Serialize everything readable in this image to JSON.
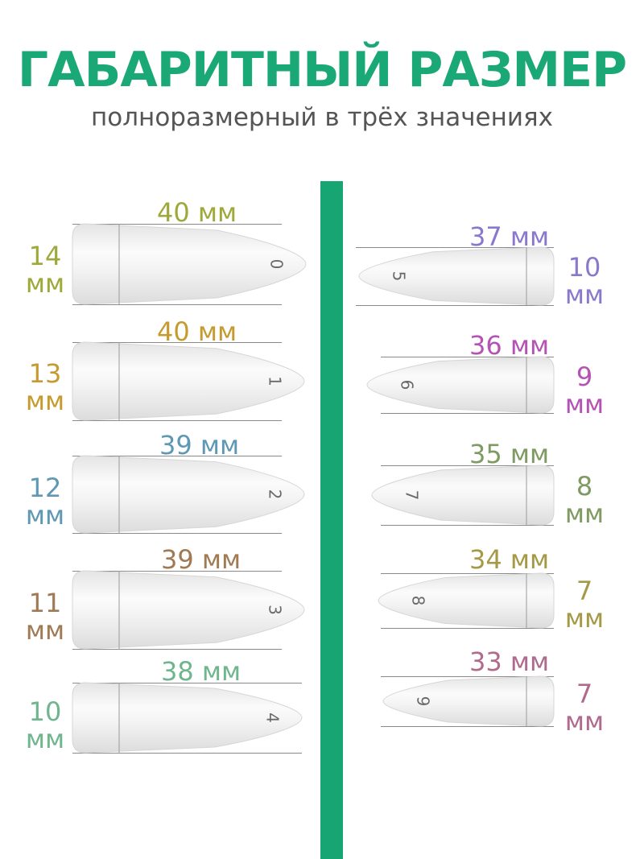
{
  "title": "ГАБАРИТНЫЙ РАЗМЕР",
  "subtitle": "полноразмерный в трёх значениях",
  "left_tips": [
    {
      "number": "0",
      "length": "40 мм",
      "width_value": "14",
      "width_unit": "мм",
      "color": "#9ea93a"
    },
    {
      "number": "1",
      "length": "40 мм",
      "width_value": "13",
      "width_unit": "мм",
      "color": "#c69a2e"
    },
    {
      "number": "2",
      "length": "39 мм",
      "width_value": "12",
      "width_unit": "мм",
      "color": "#5f98b5"
    },
    {
      "number": "3",
      "length": "39 мм",
      "width_value": "11",
      "width_unit": "мм",
      "color": "#a07a55"
    },
    {
      "number": "4",
      "length": "38 мм",
      "width_value": "10",
      "width_unit": "мм",
      "color": "#6fb58e"
    }
  ],
  "right_tips": [
    {
      "number": "5",
      "length": "37 мм",
      "width_value": "10",
      "width_unit": "мм",
      "color": "#8a78cf"
    },
    {
      "number": "6",
      "length": "36 мм",
      "width_value": "9",
      "width_unit": "мм",
      "color": "#b552b5"
    },
    {
      "number": "7",
      "length": "35 мм",
      "width_value": "8",
      "width_unit": "мм",
      "color": "#7f9a62"
    },
    {
      "number": "8",
      "length": "34 мм",
      "width_value": "7",
      "width_unit": "мм",
      "color": "#a49a45"
    },
    {
      "number": "9",
      "length": "33 мм",
      "width_value": "7",
      "width_unit": "мм",
      "color": "#b06a8e"
    }
  ]
}
